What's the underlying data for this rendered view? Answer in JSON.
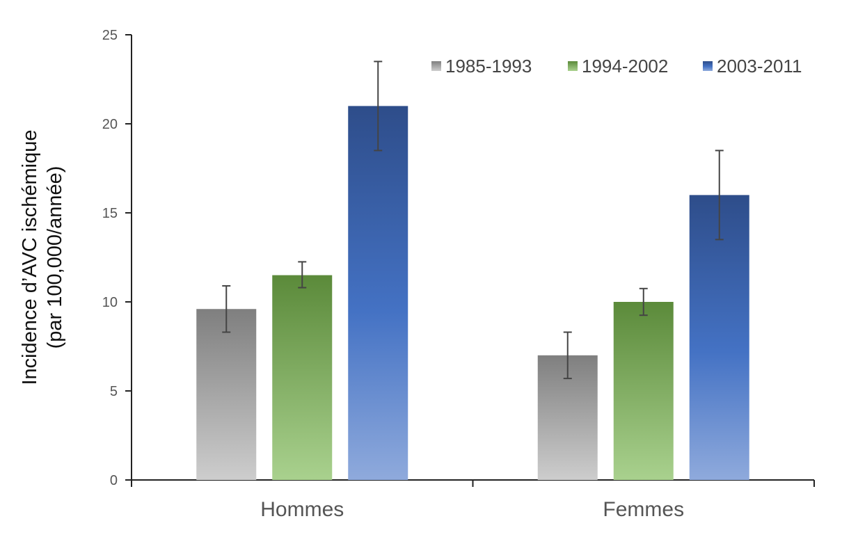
{
  "chart_data": {
    "type": "bar",
    "title": "",
    "xlabel": "",
    "ylabel_lines": [
      "Incidence d’AVC ischémique",
      "(par 100,000/année)"
    ],
    "categories": [
      "Hommes",
      "Femmes"
    ],
    "ylim": [
      0,
      25
    ],
    "yticks": [
      0,
      5,
      10,
      15,
      20,
      25
    ],
    "grid": false,
    "legend_position": "top-right",
    "series": [
      {
        "name": "1985-1993",
        "values": [
          9.6,
          7.0
        ],
        "error_low": [
          8.3,
          5.7
        ],
        "error_high": [
          10.9,
          8.3
        ],
        "color_top": "#7f7f7f",
        "color_bottom": "#cdcdcd"
      },
      {
        "name": "1994-2002",
        "values": [
          11.5,
          10.0
        ],
        "error_low": [
          10.8,
          9.25
        ],
        "error_high": [
          12.25,
          10.75
        ],
        "color_top": "#5b8a3a",
        "color_bottom": "#a9d18e"
      },
      {
        "name": "2003-2011",
        "values": [
          21.0,
          16.0
        ],
        "error_low": [
          18.5,
          13.5
        ],
        "error_high": [
          23.5,
          18.5
        ],
        "color_top": "#2e4d8a",
        "color_mid": "#4472c4",
        "color_bottom": "#8faadc"
      }
    ]
  }
}
